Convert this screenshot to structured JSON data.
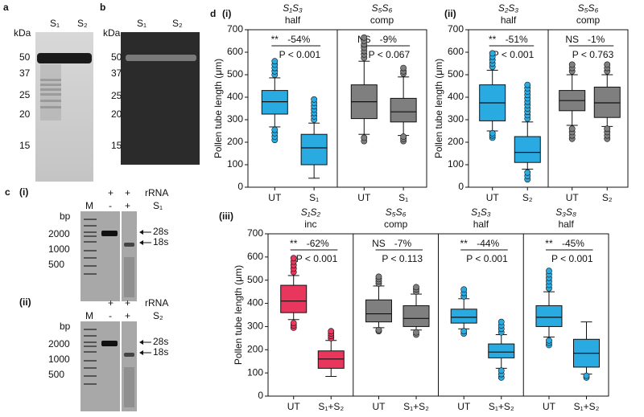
{
  "figure": {
    "labels": {
      "d": "d",
      "di": "(i)",
      "dii": "(ii)",
      "diii": "(iii)"
    },
    "a": {
      "label": "a",
      "unit": "kDa",
      "lanes": [
        "S₁",
        "S₂"
      ],
      "ladder": [
        "50",
        "37",
        "25",
        "20",
        "15"
      ]
    },
    "b": {
      "label": "b",
      "unit": "kDa",
      "lanes": [
        "S₁",
        "S₂"
      ],
      "ladder": [
        "50",
        "37",
        "25",
        "20",
        "15"
      ]
    },
    "c": {
      "label": "c",
      "gels": [
        {
          "label": "(i)",
          "rrna": [
            "+",
            "+"
          ],
          "rrna_label": "rRNA",
          "enzyme": [
            "-",
            "+"
          ],
          "enzyme_label": "S₁",
          "unit": "bp",
          "marker": "M",
          "ladder": [
            "2000",
            "1000",
            "500"
          ],
          "bands": [
            "28s",
            "18s"
          ]
        },
        {
          "label": "(ii)",
          "rrna": [
            "+",
            "+"
          ],
          "rrna_label": "rRNA",
          "enzyme": [
            "-",
            "+"
          ],
          "enzyme_label": "S₂",
          "unit": "bp",
          "marker": "M",
          "ladder": [
            "2000",
            "1000",
            "500"
          ],
          "bands": [
            "28s",
            "18s"
          ]
        }
      ]
    }
  },
  "chart_data": [
    {
      "type": "box",
      "ylabel": "Pollen tube length (μm)",
      "ylim": [
        0,
        700
      ],
      "yticks": [
        0,
        100,
        200,
        300,
        400,
        500,
        600,
        700
      ],
      "panels": [
        {
          "title": "S₁S₃",
          "subtitle": "half",
          "color": "#29abe2",
          "categories": [
            "UT",
            "S₁"
          ],
          "annotation": {
            "sig": "**",
            "change": "-54%",
            "p": "P < 0.001"
          },
          "boxes": [
            {
              "min": 268,
              "q1": 325,
              "median": 380,
              "q3": 430,
              "max": 486,
              "outliers": [
                210,
                225,
                240,
                255,
                500,
                515,
                530,
                545,
                560
              ]
            },
            {
              "min": 40,
              "q1": 100,
              "median": 175,
              "q3": 235,
              "max": 285,
              "outliers": [
                300,
                315,
                330,
                345,
                360,
                375,
                390
              ]
            }
          ]
        },
        {
          "title": "S₅S₆",
          "subtitle": "comp",
          "color": "#7f7f7f",
          "categories": [
            "UT",
            "S₁"
          ],
          "annotation": {
            "sig": "NS",
            "change": "-9%",
            "p": "P < 0.067"
          },
          "boxes": [
            {
              "min": 235,
              "q1": 305,
              "median": 380,
              "q3": 455,
              "max": 560,
              "outliers": [
                205,
                220,
                575,
                590,
                605,
                620,
                635,
                650,
                665
              ]
            },
            {
              "min": 230,
              "q1": 290,
              "median": 335,
              "q3": 395,
              "max": 490,
              "outliers": [
                205,
                215,
                225,
                505,
                515,
                530
              ]
            }
          ]
        }
      ]
    },
    {
      "type": "box",
      "ylabel": "Pollen tube length (μm)",
      "ylim": [
        0,
        700
      ],
      "yticks": [
        0,
        100,
        200,
        300,
        400,
        500,
        600,
        700
      ],
      "panels": [
        {
          "title": "S₂S₃",
          "subtitle": "half",
          "color": "#29abe2",
          "categories": [
            "UT",
            "S₂"
          ],
          "annotation": {
            "sig": "**",
            "change": "-51%",
            "p": "P < 0.001"
          },
          "boxes": [
            {
              "min": 250,
              "q1": 295,
              "median": 375,
              "q3": 455,
              "max": 520,
              "outliers": [
                220,
                230,
                240,
                535,
                550,
                565,
                580,
                595
              ]
            },
            {
              "min": 80,
              "q1": 110,
              "median": 155,
              "q3": 225,
              "max": 290,
              "outliers": [
                35,
                50,
                65,
                305,
                320,
                335,
                350,
                365,
                380,
                395,
                410,
                425,
                440,
                455
              ]
            }
          ]
        },
        {
          "title": "S₅S₆",
          "subtitle": "comp",
          "color": "#7f7f7f",
          "categories": [
            "UT",
            "S₂"
          ],
          "annotation": {
            "sig": "NS",
            "change": "-1%",
            "p": "P < 0.763"
          },
          "boxes": [
            {
              "min": 275,
              "q1": 340,
              "median": 385,
              "q3": 430,
              "max": 500,
              "outliers": [
                215,
                230,
                245,
                260,
                515,
                530,
                545
              ]
            },
            {
              "min": 270,
              "q1": 310,
              "median": 375,
              "q3": 445,
              "max": 500,
              "outliers": [
                215,
                230,
                245,
                260,
                515,
                530,
                545
              ]
            }
          ]
        }
      ]
    },
    {
      "type": "box",
      "ylabel": "Pollen tube length (μm)",
      "ylim": [
        0,
        700
      ],
      "yticks": [
        0,
        100,
        200,
        300,
        400,
        500,
        600,
        700
      ],
      "panels": [
        {
          "title": "S₁S₂",
          "subtitle": "inc",
          "color": "#e8365d",
          "categories": [
            "UT",
            "S₁+S₂"
          ],
          "annotation": {
            "sig": "**",
            "change": "-62%",
            "p": "P < 0.001"
          },
          "boxes": [
            {
              "min": 330,
              "q1": 360,
              "median": 410,
              "q3": 478,
              "max": 520,
              "outliers": [
                295,
                305,
                315,
                535,
                550,
                565,
                580,
                595
              ]
            },
            {
              "min": 85,
              "q1": 120,
              "median": 160,
              "q3": 195,
              "max": 240,
              "outliers": [
                250,
                260,
                270,
                280
              ]
            }
          ]
        },
        {
          "title": "S₅S₆",
          "subtitle": "comp",
          "color": "#7f7f7f",
          "categories": [
            "UT",
            "S₁+S₂"
          ],
          "annotation": {
            "sig": "NS",
            "change": "-7%",
            "p": "P < 0.113"
          },
          "boxes": [
            {
              "min": 295,
              "q1": 320,
              "median": 355,
              "q3": 415,
              "max": 475,
              "outliers": [
                280,
                285,
                485,
                495,
                505,
                515
              ]
            },
            {
              "min": 285,
              "q1": 300,
              "median": 335,
              "q3": 390,
              "max": 440,
              "outliers": [
                265,
                275,
                450,
                460,
                470
              ]
            }
          ]
        },
        {
          "title": "S₁S₃",
          "subtitle": "half",
          "color": "#29abe2",
          "categories": [
            "UT",
            "S₁+S₂"
          ],
          "annotation": {
            "sig": "**",
            "change": "-44%",
            "p": "P < 0.001"
          },
          "boxes": [
            {
              "min": 290,
              "q1": 315,
              "median": 340,
              "q3": 375,
              "max": 420,
              "outliers": [
                270,
                280,
                430,
                445,
                460
              ]
            },
            {
              "min": 120,
              "q1": 165,
              "median": 190,
              "q3": 225,
              "max": 265,
              "outliers": [
                80,
                95,
                110,
                275,
                290,
                305,
                320
              ]
            }
          ]
        },
        {
          "title": "S₃S₈",
          "subtitle": "half",
          "color": "#29abe2",
          "categories": [
            "UT",
            "S₁+S₂"
          ],
          "annotation": {
            "sig": "**",
            "change": "-45%",
            "p": "P < 0.001"
          },
          "boxes": [
            {
              "min": 255,
              "q1": 300,
              "median": 340,
              "q3": 390,
              "max": 450,
              "outliers": [
                220,
                230,
                240,
                465,
                480,
                495,
                510,
                525,
                540
              ]
            },
            {
              "min": 95,
              "q1": 125,
              "median": 185,
              "q3": 245,
              "max": 320,
              "outliers": [
                80,
                88
              ]
            }
          ]
        }
      ]
    }
  ]
}
